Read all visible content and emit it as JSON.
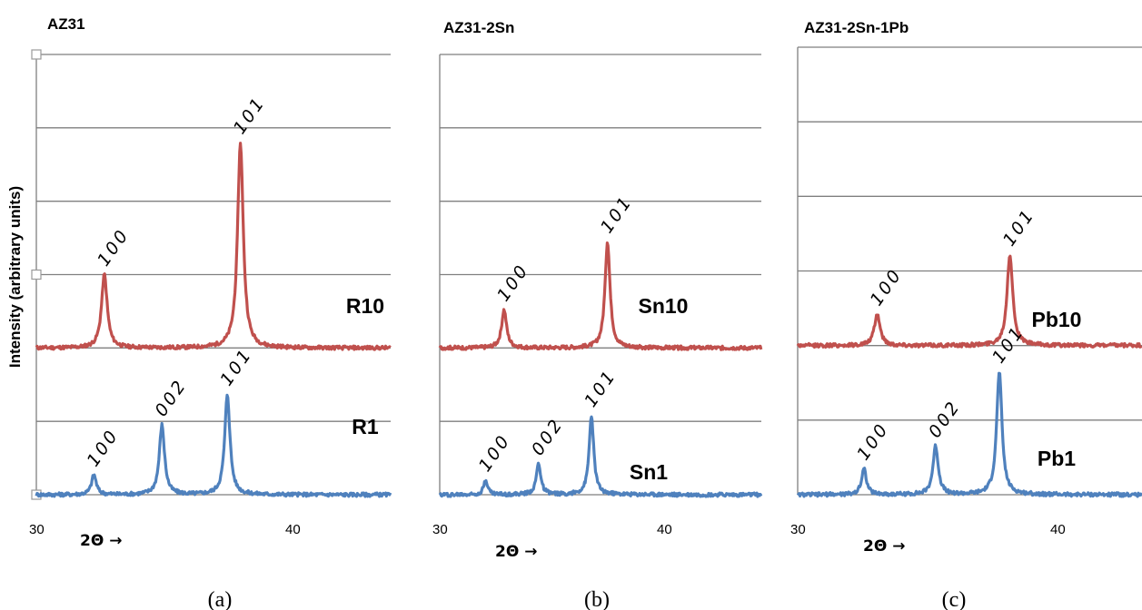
{
  "figure": {
    "ylabel": "Intensity (arbitrary units)",
    "colors": {
      "top_series": "#c0504d",
      "bottom_series": "#4f81bd",
      "grid": "#7f7f7f"
    }
  },
  "chart_data": [
    {
      "type": "line",
      "title": "AZ31",
      "caption": "(a)",
      "xlabel": "2Θ →",
      "xticks": [
        30,
        40
      ],
      "xlim": [
        30,
        45.5
      ],
      "ylim": [
        0,
        6
      ],
      "grid": true,
      "series": [
        {
          "name": "R10",
          "position": "top",
          "baseline": 2.0,
          "peaks": [
            {
              "label": "100",
              "x": 32.6,
              "height": 1.0,
              "width": 0.13
            },
            {
              "label": "101",
              "x": 37.8,
              "height": 2.8,
              "width": 0.13
            }
          ]
        },
        {
          "name": "R1",
          "position": "bottom",
          "baseline": 0.0,
          "peaks": [
            {
              "label": "100",
              "x": 32.2,
              "height": 0.27,
              "width": 0.11
            },
            {
              "label": "002",
              "x": 34.8,
              "height": 0.95,
              "width": 0.12
            },
            {
              "label": "101",
              "x": 37.3,
              "height": 1.37,
              "width": 0.12
            }
          ]
        }
      ]
    },
    {
      "type": "line",
      "title": "AZ31-2Sn",
      "caption": "(b)",
      "xlabel": "2Θ →",
      "xticks": [
        30,
        40
      ],
      "xlim": [
        30,
        44
      ],
      "ylim": [
        0,
        6
      ],
      "grid": true,
      "series": [
        {
          "name": "Sn10",
          "position": "top",
          "baseline": 2.0,
          "peaks": [
            {
              "label": "100",
              "x": 32.8,
              "height": 0.52,
              "width": 0.13
            },
            {
              "label": "101",
              "x": 37.3,
              "height": 1.45,
              "width": 0.13
            }
          ]
        },
        {
          "name": "Sn1",
          "position": "bottom",
          "baseline": 0.0,
          "peaks": [
            {
              "label": "100",
              "x": 32.0,
              "height": 0.2,
              "width": 0.11
            },
            {
              "label": "002",
              "x": 34.3,
              "height": 0.42,
              "width": 0.12
            },
            {
              "label": "101",
              "x": 36.6,
              "height": 1.08,
              "width": 0.12
            }
          ]
        }
      ]
    },
    {
      "type": "line",
      "title": "AZ31-2Sn-1Pb",
      "caption": "(c)",
      "xlabel": "2Θ →",
      "xticks": [
        30,
        40
      ],
      "xlim": [
        30,
        45
      ],
      "ylim": [
        0,
        6
      ],
      "grid": true,
      "series": [
        {
          "name": "Pb10",
          "position": "top",
          "baseline": 2.0,
          "peaks": [
            {
              "label": "100",
              "x": 33.0,
              "height": 0.42,
              "width": 0.13
            },
            {
              "label": "101",
              "x": 38.0,
              "height": 1.22,
              "width": 0.13
            }
          ]
        },
        {
          "name": "Pb1",
          "position": "bottom",
          "baseline": 0.0,
          "peaks": [
            {
              "label": "100",
              "x": 32.5,
              "height": 0.35,
              "width": 0.11
            },
            {
              "label": "002",
              "x": 35.2,
              "height": 0.65,
              "width": 0.12
            },
            {
              "label": "101",
              "x": 37.6,
              "height": 1.65,
              "width": 0.12
            }
          ]
        }
      ]
    }
  ]
}
